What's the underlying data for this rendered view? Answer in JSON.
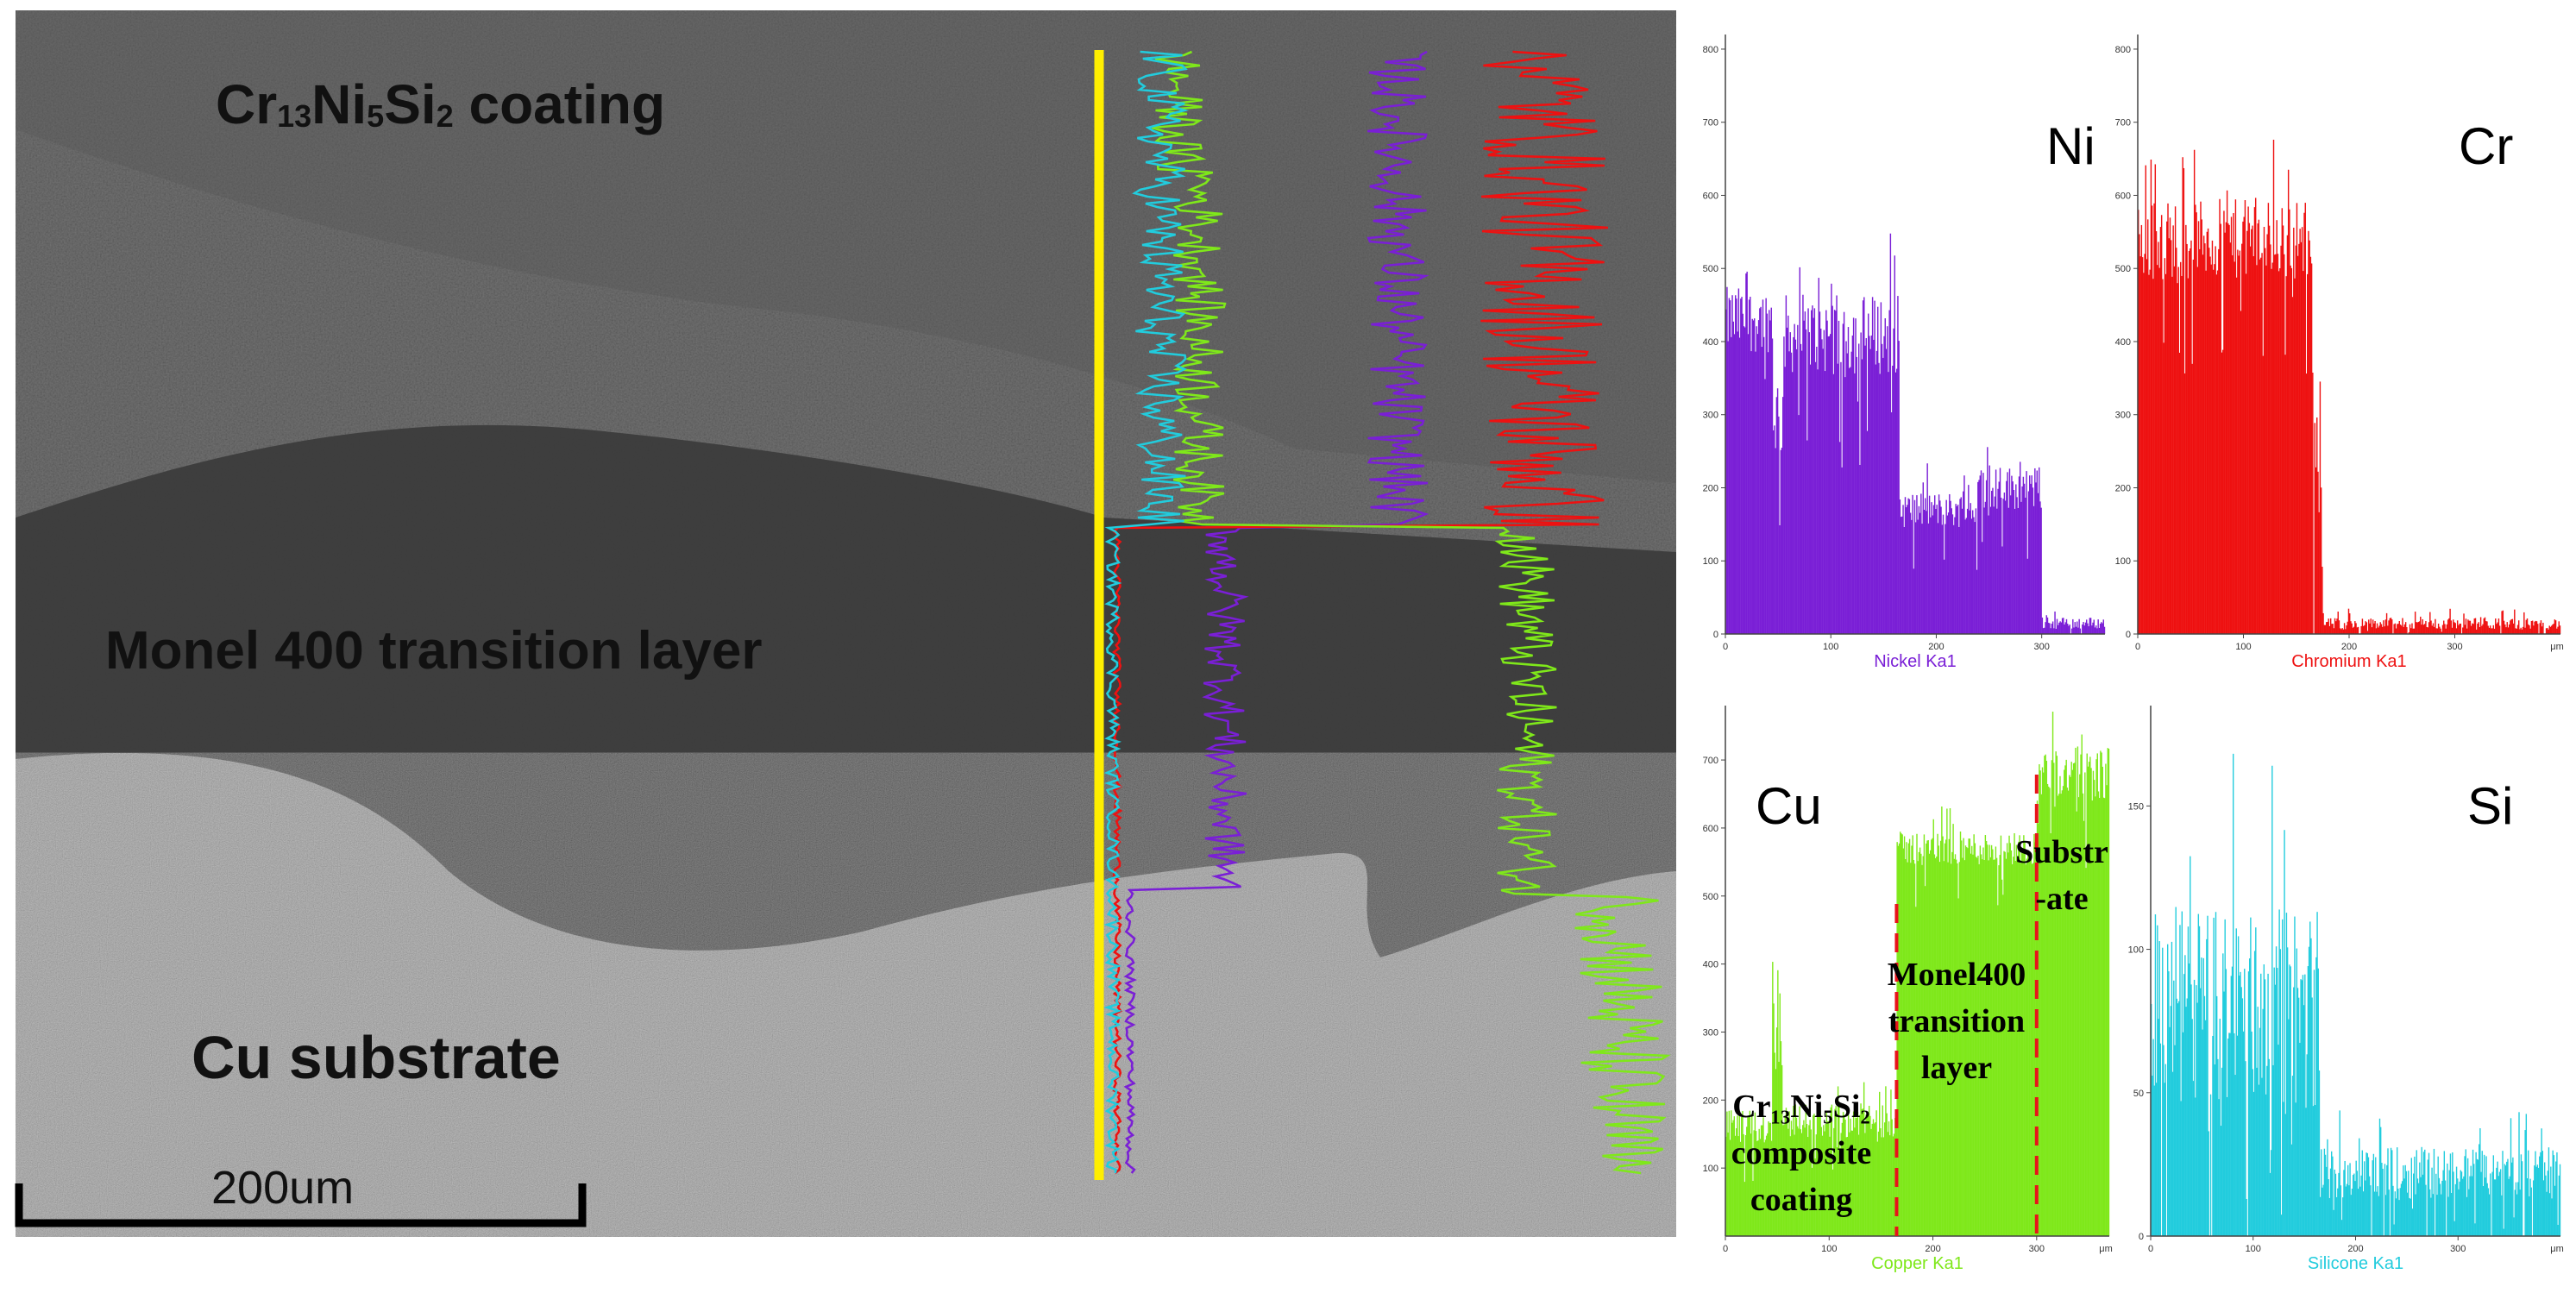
{
  "sem_image": {
    "labels": {
      "coating_prefix": "Cr",
      "coating_sub1": "13",
      "coating_mid": "Ni",
      "coating_sub2": "5",
      "coating_mid2": "Si",
      "coating_sub3": "2",
      "coating_suffix": " coating",
      "transition": "Monel 400 transition layer",
      "substrate": "Cu substrate",
      "scale_bar": "200um"
    },
    "colors": {
      "scan_line": "#ffee00",
      "Ni_trace": "#7a1fd6",
      "Cr_trace": "#ee1111",
      "Cu_trace": "#7fe81a",
      "Si_trace": "#22ccdd"
    }
  },
  "chart_data": [
    {
      "type": "bar",
      "element": "Ni",
      "xlabel": "Nickel Ka1",
      "xunit": "",
      "color": "#7a1fd6",
      "xlim": [
        0,
        360
      ],
      "ylim": [
        0,
        820
      ],
      "xticks": [
        0,
        100,
        200,
        300
      ],
      "yticks": [
        0,
        100,
        200,
        300,
        400,
        500,
        600,
        700,
        800
      ],
      "profile": [
        {
          "from": 0,
          "to": 45,
          "level": 430,
          "noise": 45
        },
        {
          "from": 45,
          "to": 55,
          "level": 300,
          "noise": 60
        },
        {
          "from": 55,
          "to": 165,
          "level": 410,
          "noise": 55
        },
        {
          "from": 165,
          "to": 240,
          "level": 170,
          "noise": 25
        },
        {
          "from": 240,
          "to": 300,
          "level": 200,
          "noise": 30
        },
        {
          "from": 300,
          "to": 360,
          "level": 15,
          "noise": 8
        }
      ]
    },
    {
      "type": "bar",
      "element": "Cr",
      "xlabel": "Chromium Ka1",
      "xunit": "μm",
      "color": "#ee1111",
      "xlim": [
        0,
        400
      ],
      "ylim": [
        0,
        820
      ],
      "xticks": [
        0,
        100,
        200,
        300
      ],
      "yticks": [
        0,
        100,
        200,
        300,
        400,
        500,
        600,
        700,
        800
      ],
      "profile": [
        {
          "from": 0,
          "to": 165,
          "level": 540,
          "noise": 55
        },
        {
          "from": 165,
          "to": 175,
          "level": 300,
          "noise": 100
        },
        {
          "from": 175,
          "to": 400,
          "level": 14,
          "noise": 8
        }
      ]
    },
    {
      "type": "bar",
      "element": "Cu",
      "xlabel": "Copper Ka1",
      "xunit": "μm",
      "color": "#7fe81a",
      "xlim": [
        0,
        370
      ],
      "ylim": [
        0,
        780
      ],
      "xticks": [
        0,
        100,
        200,
        300
      ],
      "yticks": [
        100,
        200,
        300,
        400,
        500,
        600,
        700
      ],
      "profile": [
        {
          "from": 0,
          "to": 45,
          "level": 160,
          "noise": 25
        },
        {
          "from": 45,
          "to": 55,
          "level": 330,
          "noise": 90
        },
        {
          "from": 55,
          "to": 165,
          "level": 170,
          "noise": 25
        },
        {
          "from": 165,
          "to": 300,
          "level": 570,
          "noise": 25
        },
        {
          "from": 300,
          "to": 370,
          "level": 680,
          "noise": 40
        }
      ],
      "dividers": [
        165,
        300
      ],
      "regions": [
        {
          "lines": [
            "Cr₁₃Ni₅Si₂",
            "composite",
            "coating"
          ]
        },
        {
          "lines": [
            "Monel400",
            "transition",
            "layer"
          ]
        },
        {
          "lines": [
            "Substr",
            "-ate"
          ]
        }
      ]
    },
    {
      "type": "bar",
      "element": "Si",
      "xlabel": "Silicone Ka1",
      "xunit": "μm",
      "color": "#22ccdd",
      "xlim": [
        0,
        400
      ],
      "ylim": [
        0,
        185
      ],
      "xticks": [
        0,
        100,
        200,
        300
      ],
      "yticks": [
        0,
        50,
        100,
        150
      ],
      "profile": [
        {
          "from": 0,
          "to": 165,
          "level": 80,
          "noise": 35
        },
        {
          "from": 165,
          "to": 400,
          "level": 22,
          "noise": 9
        }
      ]
    }
  ]
}
